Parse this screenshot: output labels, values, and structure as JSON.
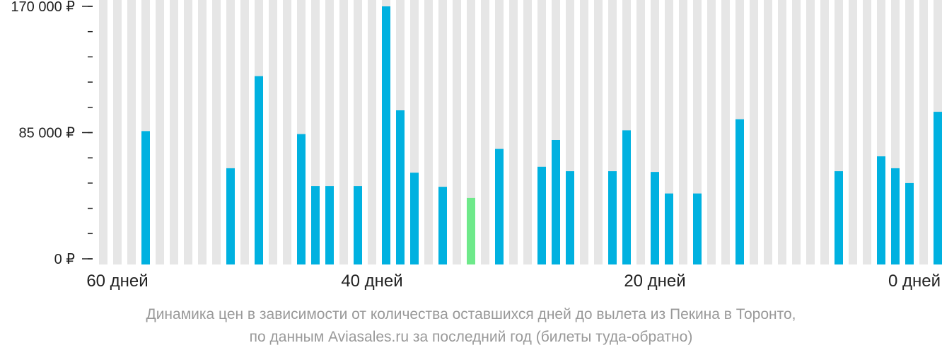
{
  "chart_data": {
    "type": "bar",
    "x": [
      59,
      58,
      57,
      56,
      55,
      54,
      53,
      52,
      51,
      50,
      49,
      48,
      47,
      46,
      45,
      44,
      43,
      42,
      41,
      40,
      39,
      38,
      37,
      36,
      35,
      34,
      33,
      32,
      31,
      30,
      29,
      28,
      27,
      26,
      25,
      24,
      23,
      22,
      21,
      20,
      19,
      18,
      17,
      16,
      15,
      14,
      13,
      12,
      11,
      10,
      9,
      8,
      7,
      6,
      5,
      4,
      3,
      2,
      1,
      0
    ],
    "values": [
      null,
      null,
      null,
      86000,
      null,
      null,
      null,
      null,
      null,
      61000,
      null,
      123000,
      null,
      null,
      84000,
      49000,
      49000,
      null,
      49000,
      null,
      170000,
      100000,
      58000,
      null,
      48500,
      null,
      41000,
      null,
      74000,
      null,
      null,
      62000,
      80000,
      59000,
      null,
      null,
      59000,
      86500,
      null,
      58500,
      44000,
      null,
      44000,
      null,
      null,
      94000,
      null,
      null,
      null,
      null,
      null,
      null,
      59000,
      null,
      null,
      69000,
      61000,
      51000,
      null,
      99000
    ],
    "highlight_index": 26,
    "yticks": [
      {
        "value": 0,
        "label": "0 ₽"
      },
      {
        "value": 85000,
        "label": "85 000 ₽"
      },
      {
        "value": 170000,
        "label": "170 000 ₽"
      }
    ],
    "ylim": [
      0,
      170000
    ],
    "minor_tick_step": 17000,
    "xticks": [
      {
        "index": 1,
        "label": "60 дней"
      },
      {
        "index": 19,
        "label": "40 дней"
      },
      {
        "index": 39,
        "label": "20 дней"
      },
      {
        "index": 58,
        "label": "0 дней"
      }
    ],
    "title": "",
    "xlabel": "",
    "ylabel": ""
  },
  "caption": {
    "line1": "Динамика цен в зависимости от количества оставшихся дней до вылета из Пекина в Торонто,",
    "line2": "по данным Aviasales.ru за последний год (билеты туда-обратно)"
  },
  "colors": {
    "bar": "#00b1e0",
    "highlight": "#6ee98a",
    "background_column": "#e6e6e6",
    "axis": "#222222",
    "caption": "#999999"
  }
}
